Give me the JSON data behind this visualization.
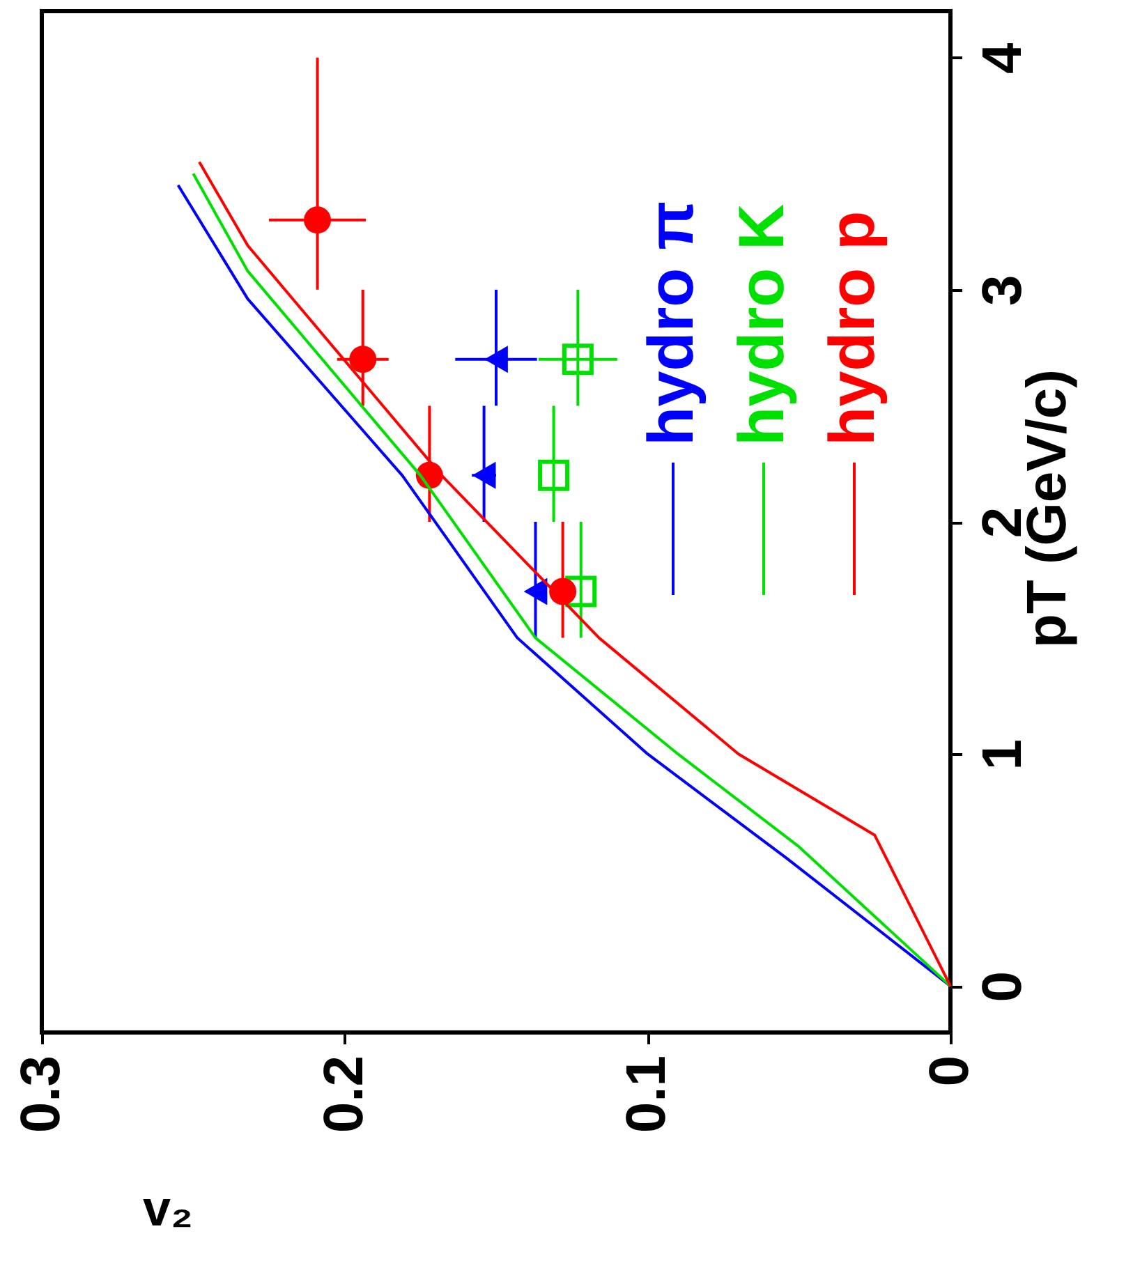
{
  "chart_data": {
    "type": "scatter",
    "xlabel": "v₂",
    "ylabel": "pT (GeV/c)",
    "xlim": [
      0.3,
      0
    ],
    "xticks": [
      0.3,
      0.2,
      0.1,
      0
    ],
    "ylim": [
      -0.2,
      4.2
    ],
    "yticks": [
      0,
      1,
      2,
      3,
      4
    ],
    "grid": false,
    "legend": "right",
    "series": [
      {
        "marker": "triangle",
        "color": "#0000ff",
        "x": [
          0.137,
          0.154,
          0.15
        ],
        "values": [
          1.7,
          2.2,
          2.7
        ],
        "xerrors": [
          null,
          0.004,
          0.0135
        ],
        "errors": [
          [
            1.5,
            2.0
          ],
          [
            2.0,
            2.5
          ],
          [
            2.5,
            3.0
          ]
        ]
      },
      {
        "marker": "square",
        "color": "#00e000",
        "x": [
          0.122,
          0.131,
          0.123
        ],
        "values": [
          1.7,
          2.2,
          2.7
        ],
        "xerrors": [
          null,
          null,
          0.013
        ],
        "errors": [
          [
            1.5,
            2.0
          ],
          [
            2.0,
            2.5
          ],
          [
            2.5,
            3.0
          ]
        ]
      },
      {
        "marker": "circle",
        "color": "#ff0000",
        "x": [
          0.128,
          0.172,
          0.194,
          0.209
        ],
        "values": [
          1.7,
          2.2,
          2.7,
          3.3
        ],
        "xerrors": [
          null,
          null,
          0.0085,
          0.016
        ],
        "errors": [
          [
            1.5,
            2.0
          ],
          [
            2.0,
            2.5
          ],
          [
            2.5,
            3.0
          ],
          [
            3.0,
            4.0
          ]
        ]
      },
      {
        "name": "hydro π",
        "type": "line",
        "color": "#0000ff",
        "x": [
          0,
          0.054,
          0.1,
          0.143,
          0.181,
          0.232,
          0.255
        ],
        "values": [
          0,
          0.55,
          1.0,
          1.5,
          2.2,
          2.96,
          3.45
        ]
      },
      {
        "name": "hydro K",
        "type": "line",
        "color": "#00e000",
        "x": [
          0,
          0.05,
          0.09,
          0.137,
          0.175,
          0.232,
          0.25
        ],
        "values": [
          0,
          0.6,
          1.0,
          1.5,
          2.2,
          3.08,
          3.5
        ]
      },
      {
        "name": "hydro p",
        "type": "line",
        "color": "#ff0000",
        "x": [
          0,
          0.025,
          0.07,
          0.116,
          0.168,
          0.232,
          0.248
        ],
        "values": [
          0,
          0.65,
          1.0,
          1.5,
          2.2,
          3.19,
          3.55
        ]
      }
    ]
  }
}
